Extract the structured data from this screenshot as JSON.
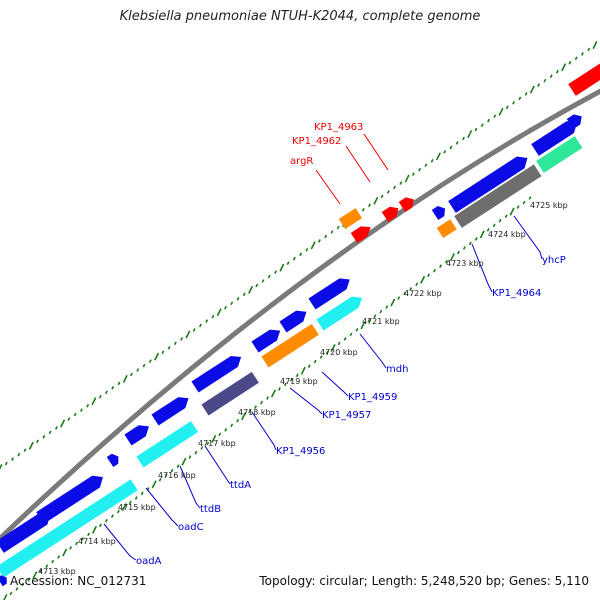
{
  "title": "Klebsiella pneumoniae NTUH-K2044, complete genome",
  "accession": "Accession: NC_012731",
  "summary": "Topology: circular; Length: 5,248,520 bp; Genes: 5,110",
  "colors": {
    "backbone": "#7a7a7a",
    "ticks": "#1a7a1a",
    "forward_cds": "#0b0be6",
    "cyan": "#22f0f0",
    "orange": "#ff8c00",
    "red": "#ff0000",
    "gray": "#6e6e6e",
    "slate": "#4a4a88",
    "teal": "#2ee89a",
    "label_blue": "#0000cc",
    "label_red": "#ee0000"
  },
  "scale": {
    "labels": [
      "4713 kbp",
      "4714 kbp",
      "4715 kbp",
      "4716 kbp",
      "4717 kbp",
      "4718 kbp",
      "4719 kbp",
      "4720 kbp",
      "4721 kbp",
      "4722 kbp",
      "4723 kbp",
      "4724 kbp",
      "4725 kbp"
    ]
  },
  "genes": {
    "blue_labels": [
      "oadA",
      "oadC",
      "ttdB",
      "ttdA",
      "KP1_4956",
      "KP1_4957",
      "KP1_4959",
      "mdh",
      "KP1_4964",
      "yhcP"
    ],
    "red_labels": [
      "argR",
      "KP1_4962",
      "KP1_4963"
    ]
  }
}
